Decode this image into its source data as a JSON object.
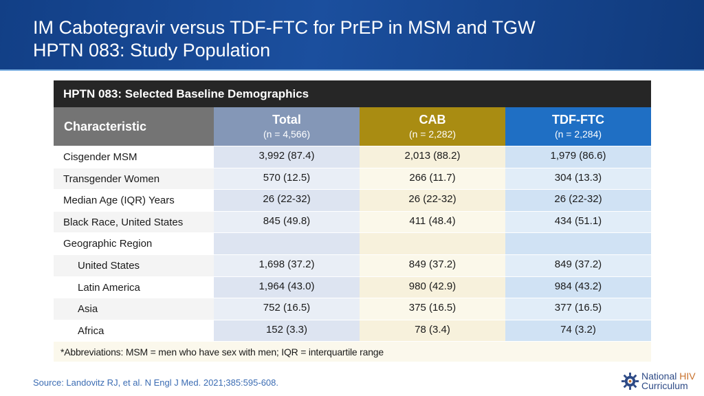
{
  "header": {
    "title_line1": "IM Cabotegravir versus TDF-FTC for PrEP in MSM and TGW",
    "title_line2": "HPTN 083: Study Population"
  },
  "table": {
    "title": "HPTN 083: Selected Baseline Demographics",
    "columns": [
      {
        "label": "Characteristic",
        "count": ""
      },
      {
        "label": "Total",
        "count": "(n = 4,566)"
      },
      {
        "label": "CAB",
        "count": "(n = 2,282)"
      },
      {
        "label": "TDF-FTC",
        "count": "(n = 2,284)"
      }
    ],
    "rows": [
      {
        "label": "Cisgender MSM",
        "total": "3,992 (87.4)",
        "cab": "2,013 (88.2)",
        "tdf": "1,979 (86.6)"
      },
      {
        "label": "Transgender Women",
        "total": "570 (12.5)",
        "cab": "266 (11.7)",
        "tdf": "304 (13.3)"
      },
      {
        "label": "Median Age (IQR) Years",
        "total": "26 (22-32)",
        "cab": "26 (22-32)",
        "tdf": "26 (22-32)"
      },
      {
        "label": "Black Race, United States",
        "total": "845 (49.8)",
        "cab": "411 (48.4)",
        "tdf": "434 (51.1)"
      },
      {
        "label": "Geographic Region",
        "total": "",
        "cab": "",
        "tdf": ""
      },
      {
        "label": "United States",
        "total": "1,698 (37.2)",
        "cab": "849 (37.2)",
        "tdf": "849 (37.2)"
      },
      {
        "label": "Latin America",
        "total": "1,964 (43.0)",
        "cab": "980 (42.9)",
        "tdf": "984 (43.2)"
      },
      {
        "label": "Asia",
        "total": "752 (16.5)",
        "cab": "375 (16.5)",
        "tdf": "377 (16.5)"
      },
      {
        "label": "Africa",
        "total": "152 (3.3)",
        "cab": "78 (3.4)",
        "tdf": "74 (3.2)"
      }
    ],
    "footnote": "*Abbreviations: MSM = men who have sex with men; IQR = interquartile range"
  },
  "source": "Source: Landovitz RJ, et al. N Engl J Med. 2021;385:595-608.",
  "logo": {
    "word1": "National",
    "word2": "HIV",
    "word3": "Curriculum"
  },
  "colors": {
    "header_blue": "#1b4f9e",
    "total_col": "#8497b7",
    "cab_col": "#a98c12",
    "tdf_col": "#1f6fc4"
  }
}
